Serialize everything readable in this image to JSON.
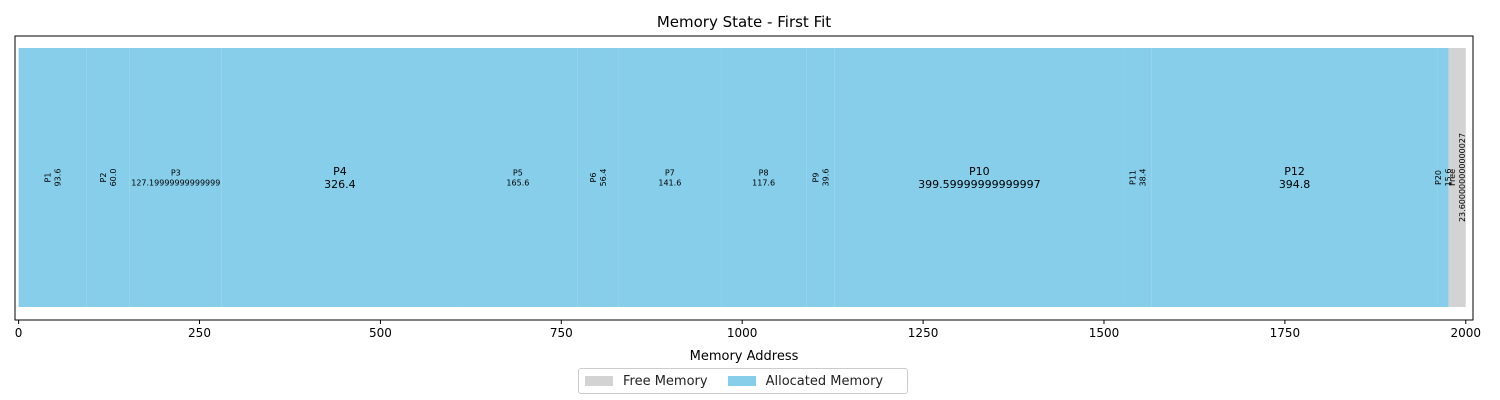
{
  "chart_data": {
    "type": "bar",
    "title": "Memory State - First Fit",
    "xlabel": "Memory Address",
    "ylabel": "",
    "xlim": [
      -5,
      2010
    ],
    "xticks": [
      0,
      250,
      500,
      750,
      1000,
      1250,
      1500,
      1750,
      2000
    ],
    "colors": {
      "allocated": "#87CEEB",
      "free": "#D3D3D3"
    },
    "blocks": [
      {
        "name": "P1",
        "start": 0,
        "size": 93.6,
        "label": "P1\n93.6",
        "kind": "allocated",
        "rotated": true
      },
      {
        "name": "P2",
        "start": 93.6,
        "size": 60.0,
        "label": "P2\n60.0",
        "kind": "allocated",
        "rotated": true
      },
      {
        "name": "P3",
        "start": 153.6,
        "size": 127.2,
        "label": "P3\n127.19999999999999",
        "kind": "allocated",
        "rotated": false
      },
      {
        "name": "P4",
        "start": 280.8,
        "size": 326.4,
        "label": "P4\n326.4",
        "kind": "allocated",
        "rotated": false
      },
      {
        "name": "P5",
        "start": 607.2,
        "size": 165.6,
        "label": "P5\n165.6",
        "kind": "allocated",
        "rotated": false
      },
      {
        "name": "P6",
        "start": 772.8,
        "size": 56.4,
        "label": "P6\n56.4",
        "kind": "allocated",
        "rotated": true
      },
      {
        "name": "P7",
        "start": 829.2,
        "size": 141.6,
        "label": "P7\n141.6",
        "kind": "allocated",
        "rotated": false
      },
      {
        "name": "P8",
        "start": 970.8,
        "size": 117.6,
        "label": "P8\n117.6",
        "kind": "allocated",
        "rotated": false
      },
      {
        "name": "P9",
        "start": 1088.4,
        "size": 39.6,
        "label": "P9\n39.6",
        "kind": "allocated",
        "rotated": true
      },
      {
        "name": "P10",
        "start": 1128.0,
        "size": 399.6,
        "label": "P10\n399.59999999999997",
        "kind": "allocated",
        "rotated": false
      },
      {
        "name": "P11",
        "start": 1527.6,
        "size": 38.4,
        "label": "P11\n38.4",
        "kind": "allocated",
        "rotated": true
      },
      {
        "name": "P12",
        "start": 1566.0,
        "size": 394.8,
        "label": "P12\n394.8",
        "kind": "allocated",
        "rotated": false
      },
      {
        "name": "P20",
        "start": 1960.8,
        "size": 15.6,
        "label": "P20\n15.6",
        "kind": "allocated",
        "rotated": true
      },
      {
        "name": "Free",
        "start": 1976.4,
        "size": 23.6,
        "label": "Free\n23.600000000000027",
        "kind": "free",
        "rotated": true
      }
    ],
    "legend": {
      "placement": "bottom-center",
      "entries": [
        {
          "label": "Free Memory",
          "kind": "free"
        },
        {
          "label": "Allocated Memory",
          "kind": "allocated"
        }
      ]
    },
    "grid": false
  },
  "legend": {
    "free_label": "Free Memory",
    "allocated_label": "Allocated Memory"
  }
}
